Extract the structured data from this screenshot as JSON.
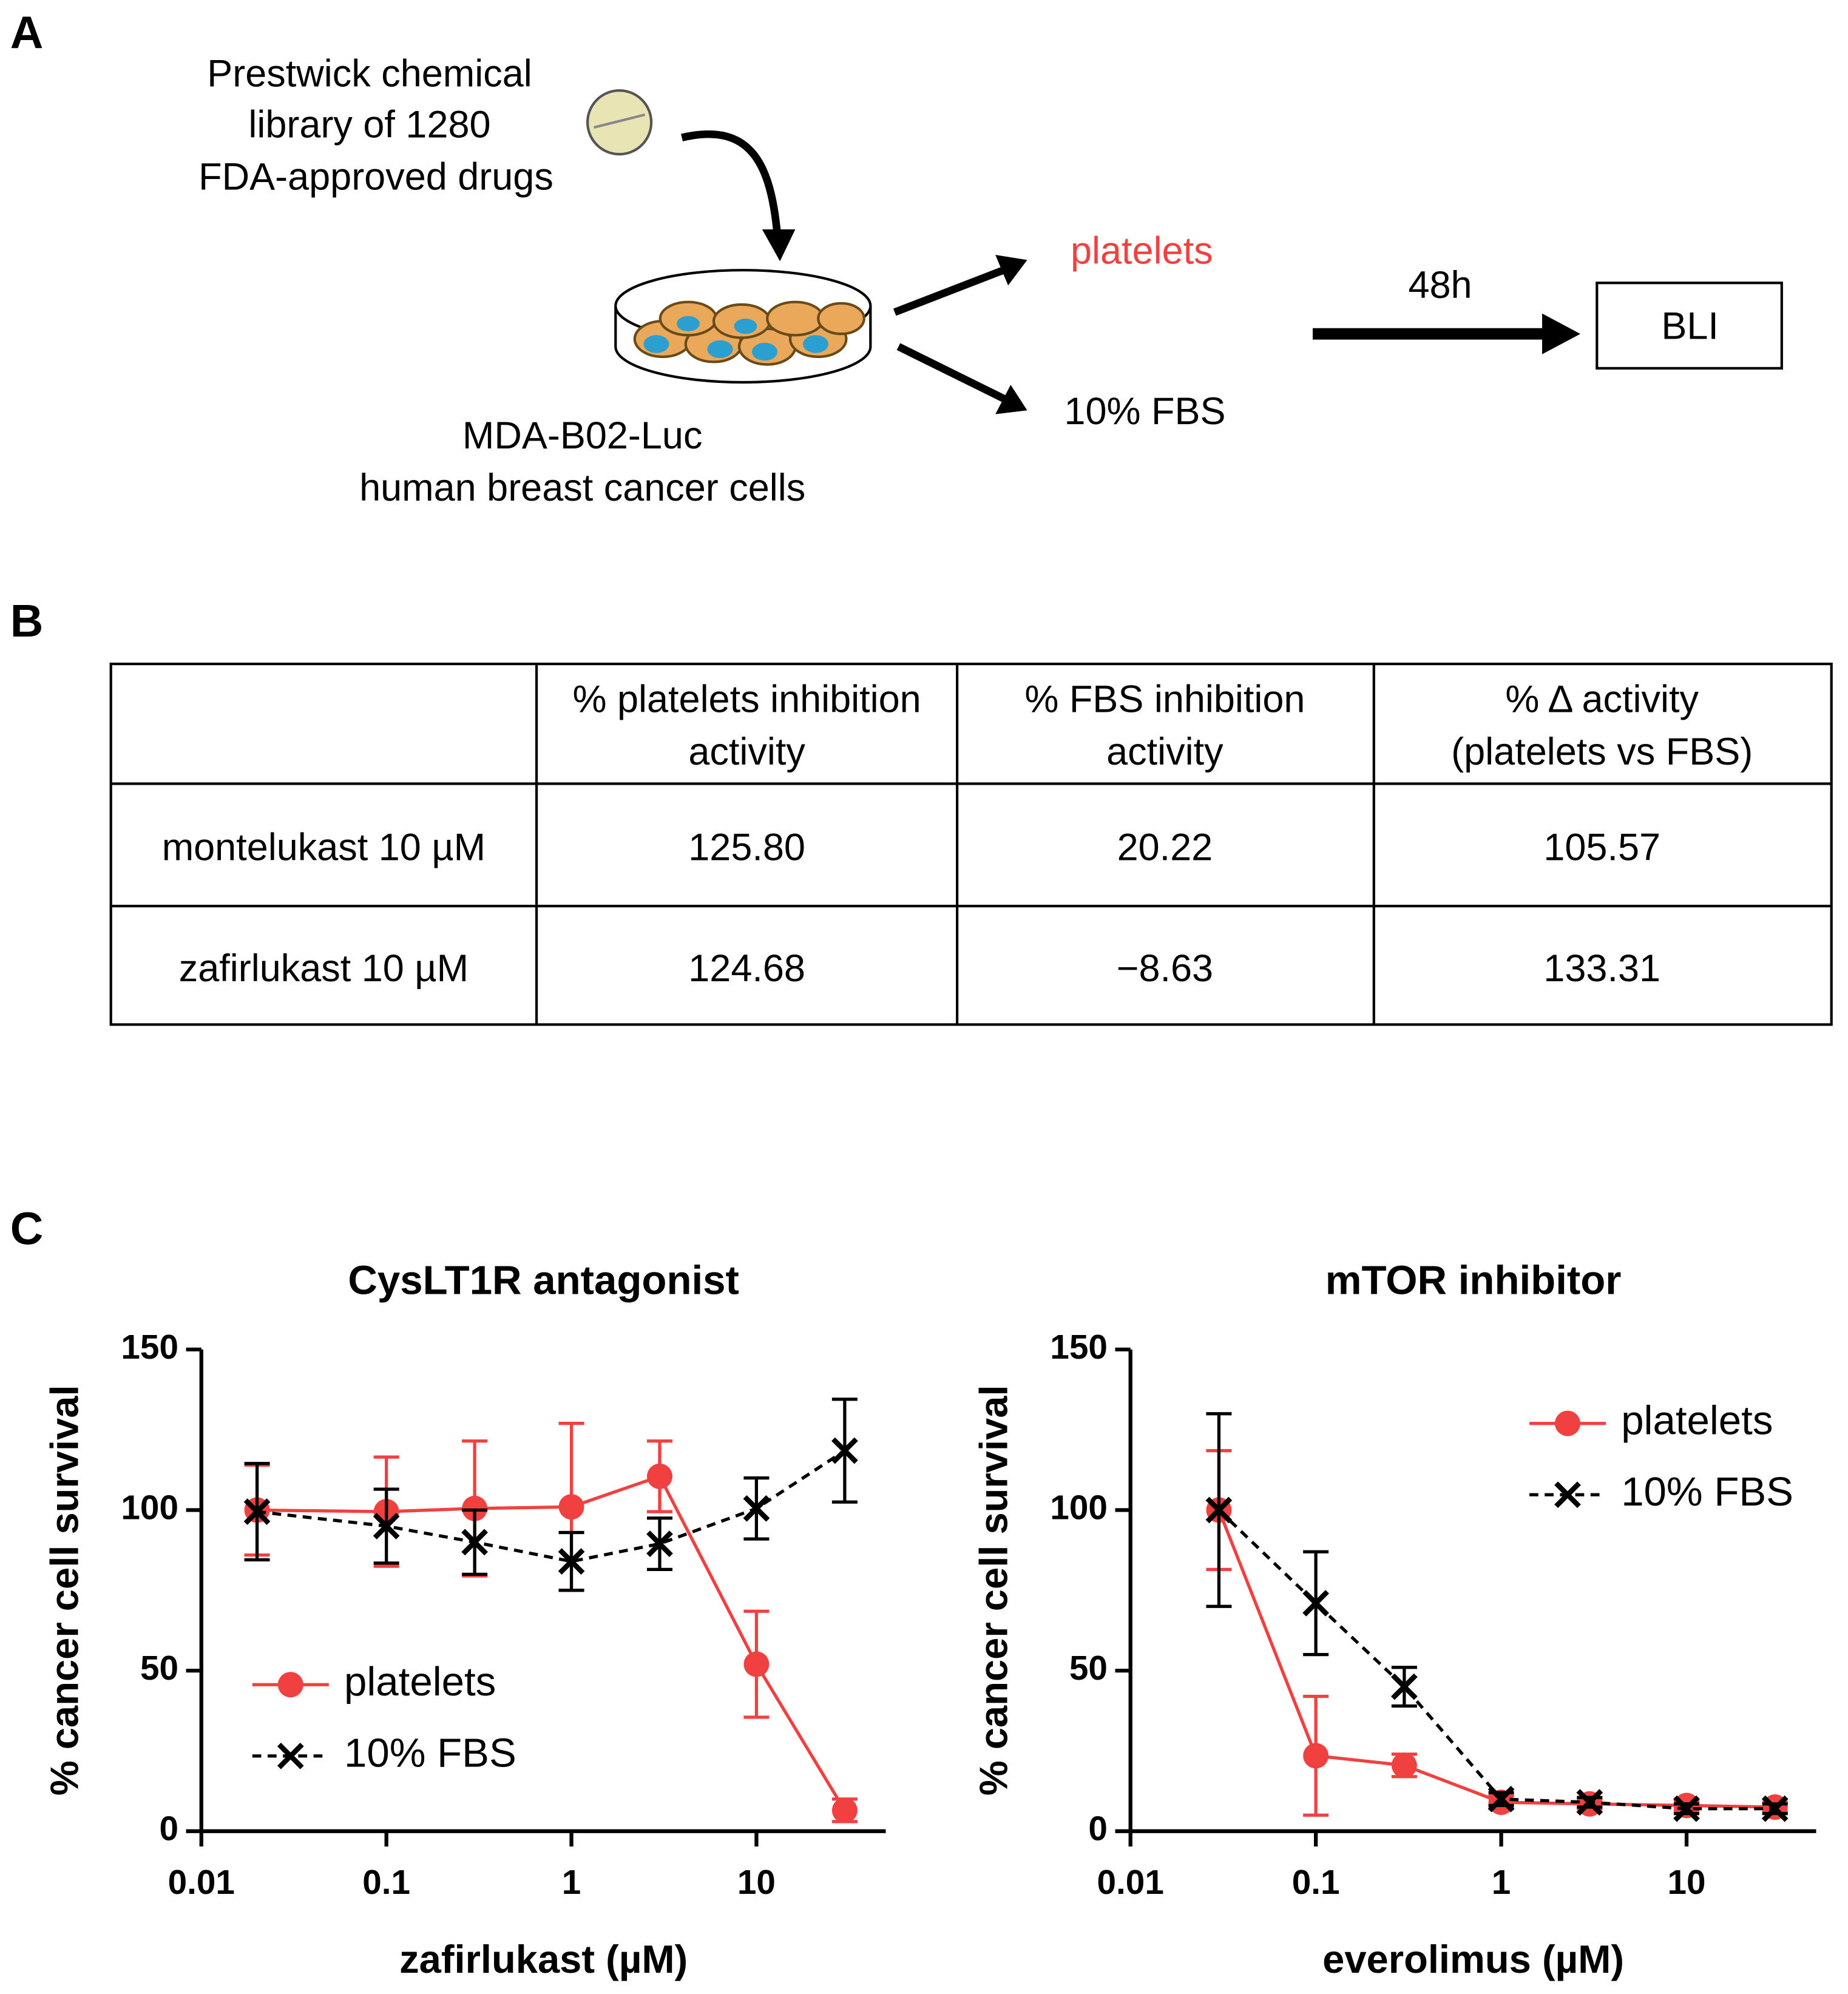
{
  "panel_labels": [
    "A",
    "B",
    "C"
  ],
  "diagram": {
    "library": [
      "Prestwick chemical",
      "library of 1280",
      "FDA-approved  drugs"
    ],
    "cells": [
      "MDA-B02-Luc",
      "human breast cancer cells"
    ],
    "condition_1": "platelets",
    "condition_2": "10% FBS",
    "time": "48h",
    "readout": "BLI"
  },
  "table": {
    "header": [
      [
        "% platelets inhibition",
        "activity"
      ],
      [
        "% FBS inhibition",
        "activity"
      ],
      [
        "% Δ activity",
        "(platelets vs FBS)"
      ]
    ],
    "rows": [
      [
        "montelukast 10 µM",
        "125.80",
        "20.22",
        "105.57"
      ],
      [
        "zafirlukast 10 µM",
        "124.68",
        "−8.63",
        "133.31"
      ]
    ]
  },
  "chart_data": [
    {
      "type": "line",
      "title": "CysLT1R antagonist",
      "x_label": "zafirlukast (µM)",
      "y_label": "% cancer cell survival",
      "log_x": true,
      "xlim": [
        0.01,
        50
      ],
      "xticks": [
        0.01,
        0.1,
        1,
        10
      ],
      "ylim": [
        0,
        150
      ],
      "yticks": [
        0,
        50,
        100,
        150
      ],
      "legend": "lower left",
      "x": [
        0.02,
        0.1,
        0.3,
        1,
        3,
        10,
        30
      ],
      "series": [
        {
          "name": "platelets",
          "color": "#f04040",
          "marker": "circle",
          "dashed": false,
          "values": [
            100,
            99.5,
            100.5,
            101,
            110.5,
            52,
            6.5
          ],
          "errors": [
            14,
            17,
            21,
            26,
            11,
            16.5,
            3.5
          ]
        },
        {
          "name": "10% FBS",
          "color": "#000000",
          "marker": "x",
          "dashed": true,
          "values": [
            99.5,
            95,
            90,
            84,
            89.5,
            100.5,
            118.5
          ],
          "errors": [
            15,
            11.5,
            10,
            9,
            8,
            9.5,
            16
          ]
        }
      ]
    },
    {
      "type": "line",
      "title": "mTOR inhibitor",
      "x_label": "everolimus (µM)",
      "y_label": "% cancer cell survival",
      "log_x": true,
      "xlim": [
        0.01,
        50
      ],
      "xticks": [
        0.01,
        0.1,
        1,
        10
      ],
      "ylim": [
        0,
        150
      ],
      "yticks": [
        0,
        50,
        100,
        150
      ],
      "legend": "upper right",
      "x": [
        0.03,
        0.1,
        0.3,
        1,
        3,
        10,
        30
      ],
      "series": [
        {
          "name": "platelets",
          "color": "#f04040",
          "marker": "circle",
          "dashed": false,
          "values": [
            100,
            23.5,
            20.5,
            9,
            8.5,
            8,
            7.5
          ],
          "errors": [
            18.5,
            18.5,
            3.5,
            2,
            1.5,
            1.5,
            1.5
          ]
        },
        {
          "name": "10% FBS",
          "color": "#000000",
          "marker": "x",
          "dashed": true,
          "values": [
            100,
            71,
            45,
            10,
            9,
            7,
            7
          ],
          "errors": [
            30,
            16,
            6,
            2,
            1.5,
            1.5,
            1.5
          ]
        }
      ]
    }
  ]
}
